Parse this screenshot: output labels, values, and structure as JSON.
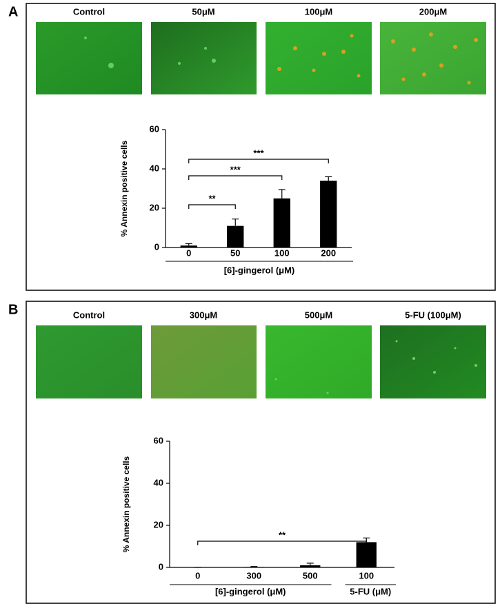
{
  "chart_data": [
    {
      "type": "bar",
      "panel": "A",
      "image_labels": [
        "Control",
        "50μM",
        "100μM",
        "200μM"
      ],
      "y_label": "% Annexin positive cells",
      "categories": [
        "0",
        "50",
        "100",
        "200"
      ],
      "values": [
        1,
        11,
        25,
        34
      ],
      "errors": [
        1,
        3.5,
        4.5,
        2
      ],
      "color": "#000000",
      "ylim": [
        0,
        60
      ],
      "yticks": [
        0,
        20,
        40,
        60
      ],
      "groups": [
        {
          "label": "[6]-gingerol (μM)",
          "categories": [
            "0",
            "50",
            "100",
            "200"
          ]
        }
      ],
      "annotations": [
        {
          "text": "**",
          "categories": [
            "0",
            "50"
          ]
        },
        {
          "text": "***",
          "categories": [
            "0",
            "100"
          ]
        },
        {
          "text": "***",
          "categories": [
            "0",
            "200"
          ]
        }
      ]
    },
    {
      "type": "bar",
      "panel": "B",
      "image_labels": [
        "Control",
        "300μM",
        "500μM",
        "5-FU (100μM)"
      ],
      "y_label": "% Annexin positive cells",
      "categories": [
        "0",
        "300",
        "500",
        "100"
      ],
      "values": [
        0,
        0.2,
        1,
        12
      ],
      "errors": [
        0,
        0.2,
        1,
        2
      ],
      "color": "#000000",
      "ylim": [
        0,
        60
      ],
      "yticks": [
        0,
        20,
        40,
        60
      ],
      "groups": [
        {
          "label": "[6]-gingerol (μM)",
          "categories": [
            "0",
            "300",
            "500"
          ]
        },
        {
          "label": "5-FU (μM)",
          "categories": [
            "100"
          ]
        }
      ],
      "annotations": [
        {
          "text": "**",
          "categories": [
            "0",
            "100"
          ]
        }
      ]
    }
  ]
}
